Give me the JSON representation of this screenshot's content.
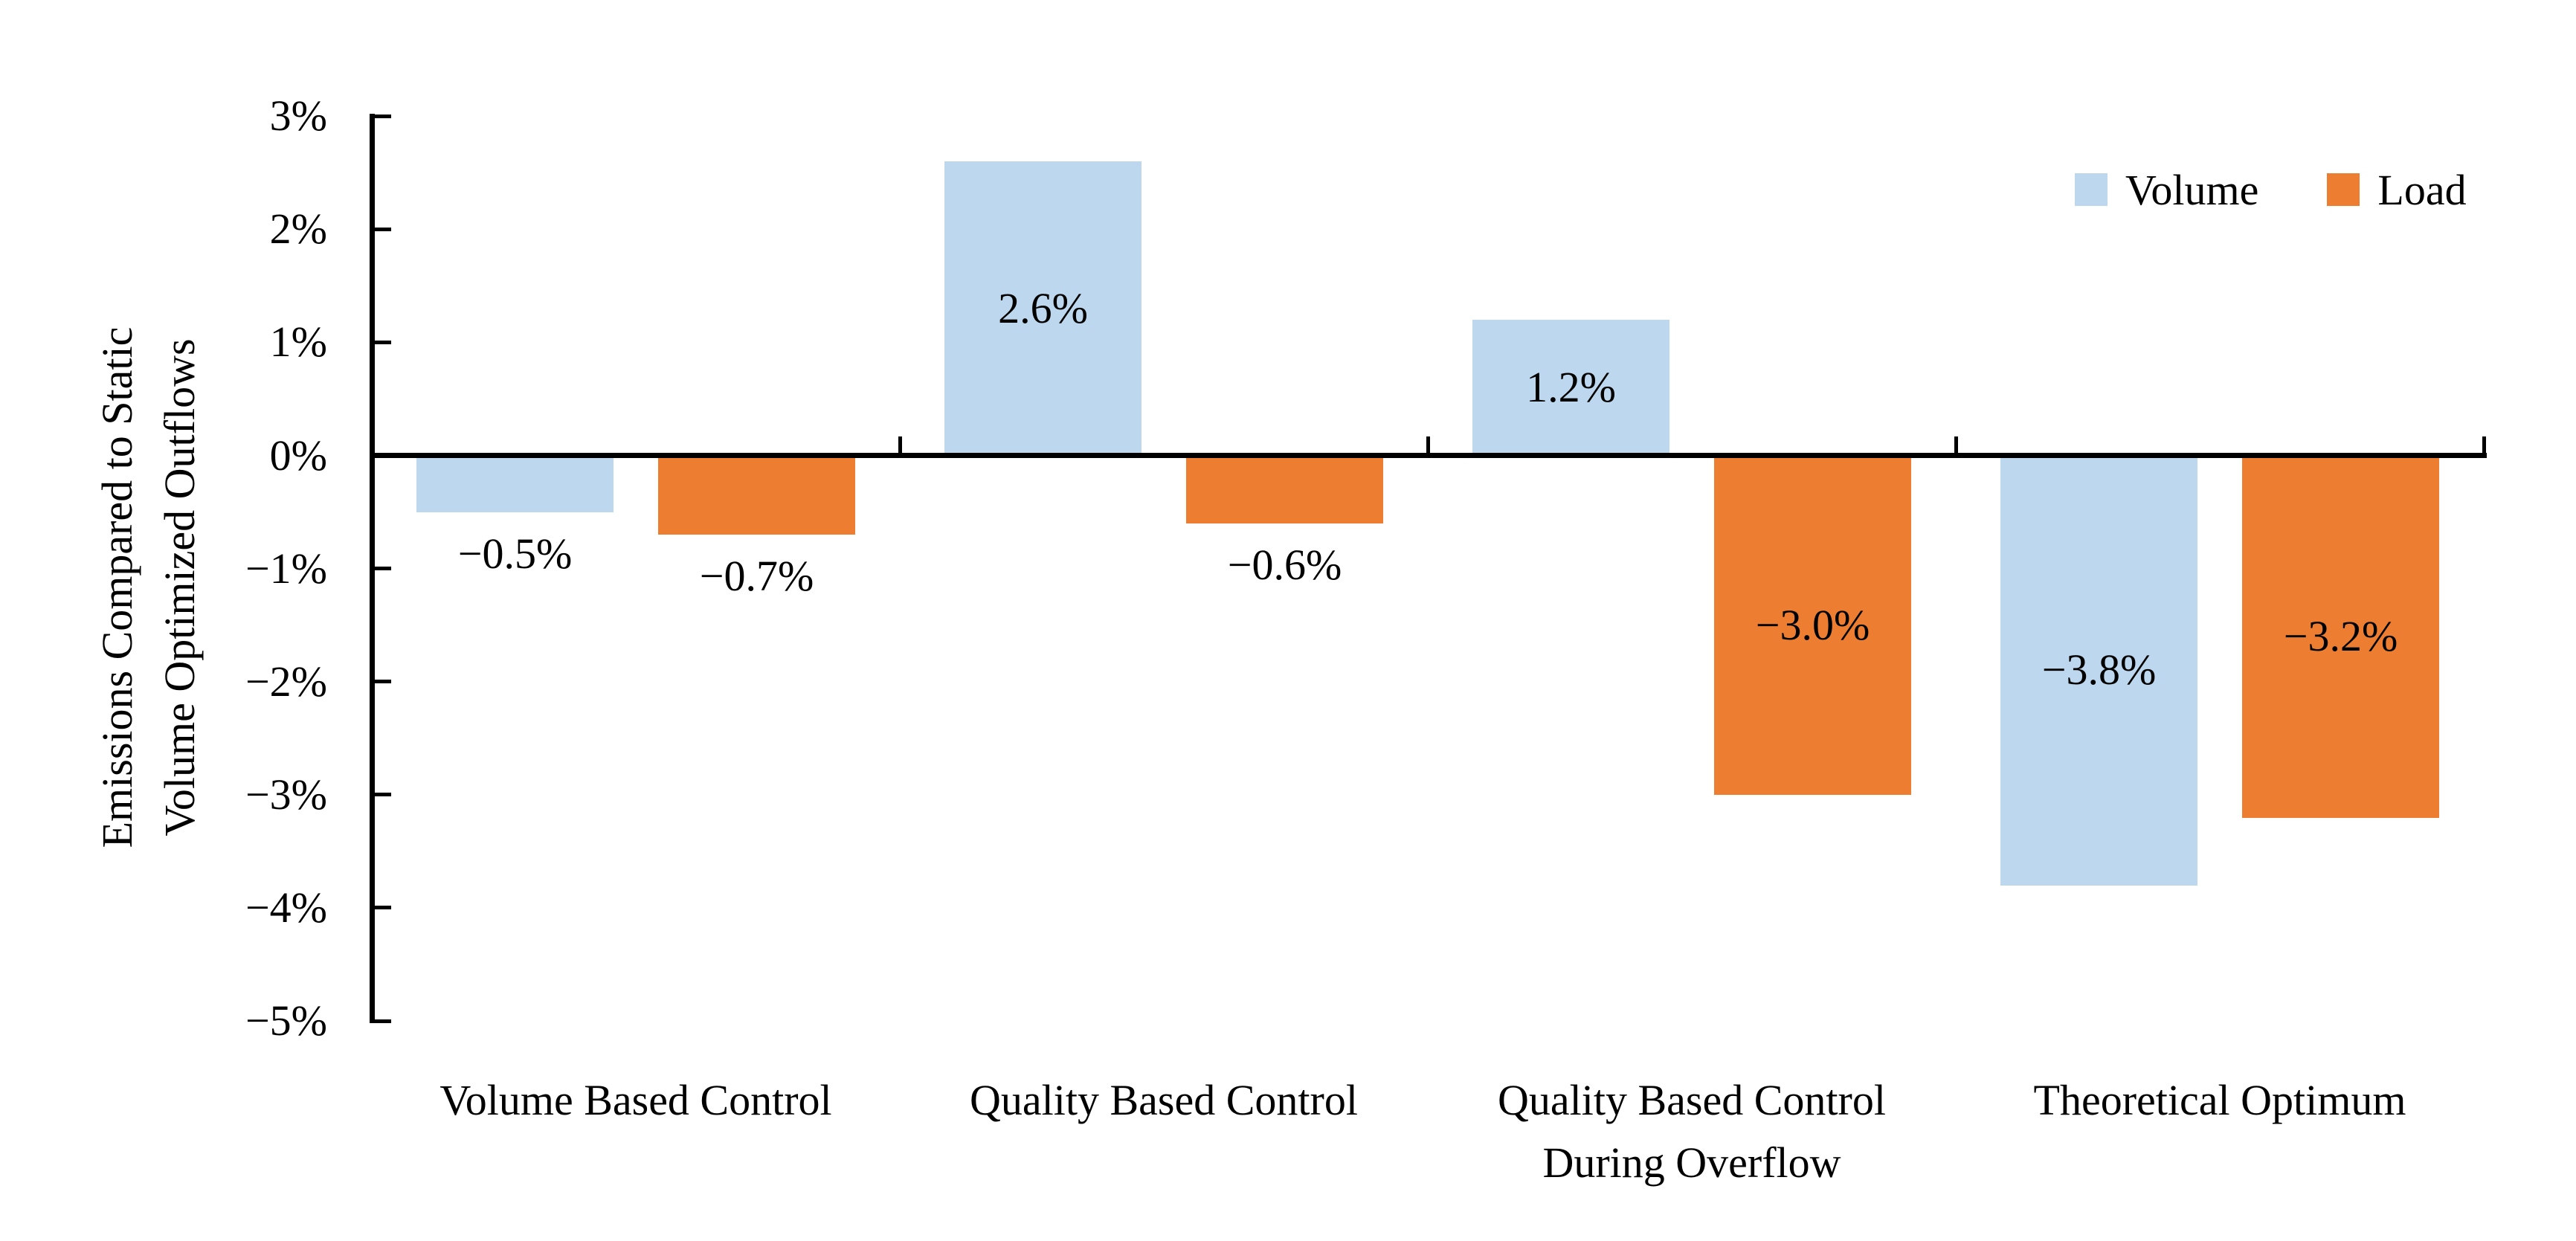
{
  "chart_data": {
    "type": "bar",
    "title": "",
    "ylabel_lines": [
      "Emissions Compared to Static",
      "Volume Optimized Outflows"
    ],
    "ylim": [
      -5,
      3
    ],
    "grid": false,
    "axis_color": "#000000",
    "text_color": "#000000",
    "background_color": "#ffffff",
    "yticks": [
      {
        "value": 3,
        "label": "3%"
      },
      {
        "value": 2,
        "label": "2%"
      },
      {
        "value": 1,
        "label": "1%"
      },
      {
        "value": 0,
        "label": "0%"
      },
      {
        "value": -1,
        "label": "−1%"
      },
      {
        "value": -2,
        "label": "−2%"
      },
      {
        "value": -3,
        "label": "−3%"
      },
      {
        "value": -4,
        "label": "−4%"
      },
      {
        "value": -5,
        "label": "−5%"
      }
    ],
    "categories": [
      {
        "lines": [
          "Volume Based Control"
        ]
      },
      {
        "lines": [
          "Quality Based Control"
        ]
      },
      {
        "lines": [
          "Quality Based Control",
          "During Overflow"
        ]
      },
      {
        "lines": [
          "Theoretical Optimum"
        ]
      }
    ],
    "series": [
      {
        "name": "Volume",
        "color": "#BDD7EE",
        "values": [
          -0.5,
          2.6,
          1.2,
          -3.8
        ],
        "data_labels": [
          "−0.5%",
          "2.6%",
          "1.2%",
          "−3.8%"
        ],
        "label_placement": [
          "below",
          "inside",
          "inside",
          "inside"
        ]
      },
      {
        "name": "Load",
        "color": "#ED7D31",
        "values": [
          -0.7,
          -0.6,
          -3.0,
          -3.2
        ],
        "data_labels": [
          "−0.7%",
          "−0.6%",
          "−3.0%",
          "−3.2%"
        ],
        "label_placement": [
          "below",
          "below",
          "inside",
          "inside"
        ]
      }
    ],
    "legend": {
      "position": "top-right",
      "entries": [
        "Volume",
        "Load"
      ]
    }
  }
}
